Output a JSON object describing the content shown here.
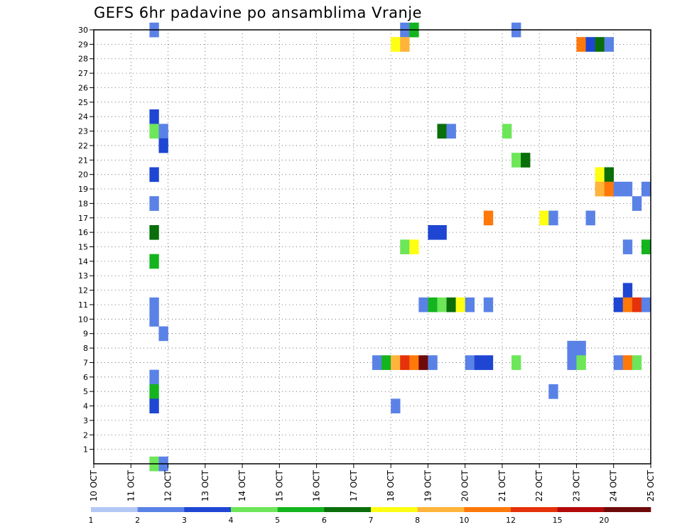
{
  "chart_data": {
    "type": "heatmap",
    "title": "GEFS 6hr padavine po ansamblima Vranje",
    "x_tick_labels": [
      "10 OCT",
      "11 OCT",
      "12 OCT",
      "13 OCT",
      "14 OCT",
      "15 OCT",
      "16 OCT",
      "17 OCT",
      "18 OCT",
      "19 OCT",
      "20 OCT",
      "21 OCT",
      "22 OCT",
      "23 OCT",
      "24 OCT",
      "25 OCT"
    ],
    "y_tick_labels": [
      "1",
      "2",
      "3",
      "4",
      "5",
      "6",
      "7",
      "8",
      "9",
      "10",
      "11",
      "12",
      "13",
      "14",
      "15",
      "16",
      "17",
      "18",
      "19",
      "20",
      "21",
      "22",
      "23",
      "24",
      "25",
      "26",
      "27",
      "28",
      "29",
      "30"
    ],
    "xlim": [
      0,
      60
    ],
    "ylim": [
      0,
      30
    ],
    "grid": true,
    "colorbar": {
      "labels": [
        "1",
        "2",
        "3",
        "4",
        "5",
        "6",
        "7",
        "8",
        "10",
        "12",
        "15",
        "20"
      ],
      "colors": [
        "#b4c8f5",
        "#5a82e6",
        "#1e46d2",
        "#6ee65a",
        "#14b41e",
        "#0a6e0a",
        "#ffff14",
        "#ffb43c",
        "#ff780a",
        "#e6320a",
        "#b40a0a",
        "#6e0a0a"
      ]
    },
    "cells": [
      {
        "t": 33,
        "m": 30,
        "v": 1
      },
      {
        "t": 34,
        "m": 30,
        "v": 4
      },
      {
        "t": 45,
        "m": 30,
        "v": 1
      },
      {
        "t": 6,
        "m": 30,
        "v": 1
      },
      {
        "t": 32,
        "m": 29,
        "v": 6
      },
      {
        "t": 33,
        "m": 29,
        "v": 7
      },
      {
        "t": 52,
        "m": 29,
        "v": 8
      },
      {
        "t": 53,
        "m": 29,
        "v": 2
      },
      {
        "t": 54,
        "m": 29,
        "v": 5
      },
      {
        "t": 55,
        "m": 29,
        "v": 1
      },
      {
        "t": 6,
        "m": 24,
        "v": 2
      },
      {
        "t": 6,
        "m": 23,
        "v": 3
      },
      {
        "t": 7,
        "m": 23,
        "v": 1
      },
      {
        "t": 37,
        "m": 23,
        "v": 5
      },
      {
        "t": 38,
        "m": 23,
        "v": 1
      },
      {
        "t": 44,
        "m": 23,
        "v": 3
      },
      {
        "t": 7,
        "m": 22,
        "v": 2
      },
      {
        "t": 45,
        "m": 21,
        "v": 3
      },
      {
        "t": 46,
        "m": 21,
        "v": 5
      },
      {
        "t": 6,
        "m": 20,
        "v": 2
      },
      {
        "t": 54,
        "m": 20,
        "v": 6
      },
      {
        "t": 55,
        "m": 20,
        "v": 5
      },
      {
        "t": 54,
        "m": 19,
        "v": 7
      },
      {
        "t": 55,
        "m": 19,
        "v": 8
      },
      {
        "t": 56,
        "m": 19,
        "v": 1
      },
      {
        "t": 57,
        "m": 19,
        "v": 1
      },
      {
        "t": 59,
        "m": 19,
        "v": 1
      },
      {
        "t": 6,
        "m": 18,
        "v": 1
      },
      {
        "t": 58,
        "m": 18,
        "v": 1
      },
      {
        "t": 42,
        "m": 17,
        "v": 8
      },
      {
        "t": 48,
        "m": 17,
        "v": 6
      },
      {
        "t": 49,
        "m": 17,
        "v": 1
      },
      {
        "t": 53,
        "m": 17,
        "v": 1
      },
      {
        "t": 6,
        "m": 16,
        "v": 5
      },
      {
        "t": 36,
        "m": 16,
        "v": 2
      },
      {
        "t": 37,
        "m": 16,
        "v": 2
      },
      {
        "t": 33,
        "m": 15,
        "v": 3
      },
      {
        "t": 34,
        "m": 15,
        "v": 6
      },
      {
        "t": 57,
        "m": 15,
        "v": 1
      },
      {
        "t": 59,
        "m": 15,
        "v": 4
      },
      {
        "t": 6,
        "m": 14,
        "v": 4
      },
      {
        "t": 57,
        "m": 12,
        "v": 2
      },
      {
        "t": 6,
        "m": 11,
        "v": 1
      },
      {
        "t": 35,
        "m": 11,
        "v": 1
      },
      {
        "t": 36,
        "m": 11,
        "v": 4
      },
      {
        "t": 37,
        "m": 11,
        "v": 3
      },
      {
        "t": 38,
        "m": 11,
        "v": 5
      },
      {
        "t": 39,
        "m": 11,
        "v": 6
      },
      {
        "t": 40,
        "m": 11,
        "v": 1
      },
      {
        "t": 42,
        "m": 11,
        "v": 1
      },
      {
        "t": 56,
        "m": 11,
        "v": 2
      },
      {
        "t": 57,
        "m": 11,
        "v": 8
      },
      {
        "t": 58,
        "m": 11,
        "v": 9
      },
      {
        "t": 59,
        "m": 11,
        "v": 1
      },
      {
        "t": 6,
        "m": 10,
        "v": 1
      },
      {
        "t": 7,
        "m": 9,
        "v": 1
      },
      {
        "t": 51,
        "m": 8,
        "v": 1
      },
      {
        "t": 52,
        "m": 8,
        "v": 1
      },
      {
        "t": 30,
        "m": 7,
        "v": 1
      },
      {
        "t": 31,
        "m": 7,
        "v": 4
      },
      {
        "t": 32,
        "m": 7,
        "v": 7
      },
      {
        "t": 33,
        "m": 7,
        "v": 9
      },
      {
        "t": 34,
        "m": 7,
        "v": 8
      },
      {
        "t": 35,
        "m": 7,
        "v": 11
      },
      {
        "t": 36,
        "m": 7,
        "v": 1
      },
      {
        "t": 40,
        "m": 7,
        "v": 1
      },
      {
        "t": 41,
        "m": 7,
        "v": 2
      },
      {
        "t": 42,
        "m": 7,
        "v": 2
      },
      {
        "t": 45,
        "m": 7,
        "v": 3
      },
      {
        "t": 51,
        "m": 7,
        "v": 1
      },
      {
        "t": 52,
        "m": 7,
        "v": 3
      },
      {
        "t": 56,
        "m": 7,
        "v": 1
      },
      {
        "t": 57,
        "m": 7,
        "v": 8
      },
      {
        "t": 58,
        "m": 7,
        "v": 3
      },
      {
        "t": 6,
        "m": 6,
        "v": 1
      },
      {
        "t": 6,
        "m": 5,
        "v": 4
      },
      {
        "t": 49,
        "m": 5,
        "v": 1
      },
      {
        "t": 6,
        "m": 4,
        "v": 2
      },
      {
        "t": 32,
        "m": 4,
        "v": 1
      },
      {
        "t": 6,
        "m": 0,
        "v": 3
      },
      {
        "t": 7,
        "m": 0,
        "v": 1
      }
    ]
  }
}
